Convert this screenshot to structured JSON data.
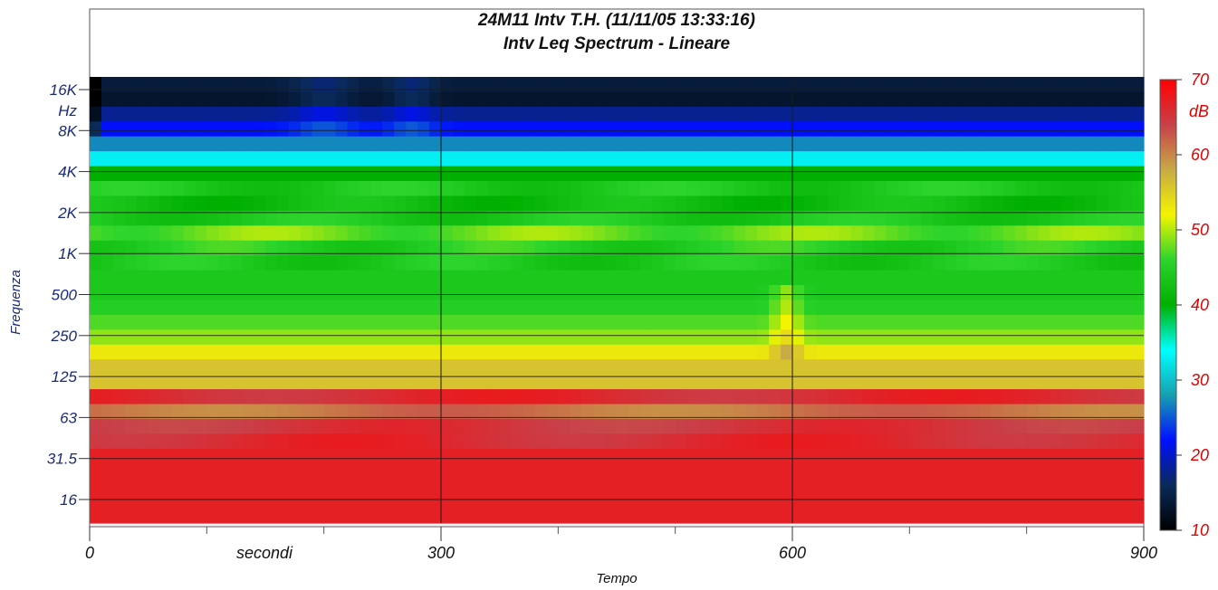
{
  "chart_data": {
    "type": "heatmap",
    "title": "24M11 Intv T.H. (11/11/05 13:33:16)",
    "subtitle": "Intv Leq Spectrum - Lineare",
    "xlabel": "Tempo",
    "x_unit_label": "secondi",
    "ylabel": "Frequenza",
    "y_unit_label": "Hz",
    "x_range": [
      0,
      900
    ],
    "x_ticks": [
      "0",
      "300",
      "600",
      "900"
    ],
    "x_minor_step": 100,
    "y_ticks": [
      "16K",
      "8K",
      "4K",
      "2K",
      "1K",
      "500",
      "250",
      "125",
      "63",
      "31.5",
      "16"
    ],
    "colorbar": {
      "unit": "dB",
      "range": [
        10,
        70
      ],
      "ticks": [
        "70",
        "60",
        "50",
        "40",
        "30",
        "20",
        "10"
      ]
    },
    "grid": true,
    "time_step_s": 10,
    "band_order": "top-to-bottom",
    "band_base_levels_db": [
      14,
      13,
      18,
      22,
      27,
      33,
      40,
      44,
      42,
      44,
      48,
      45,
      44,
      44,
      44,
      45,
      47,
      49,
      53,
      56,
      56,
      66,
      61,
      65,
      66,
      67,
      67,
      67,
      67,
      67
    ],
    "colors": {
      "stops": [
        "#000000",
        "#0a2a5a",
        "#0010ff",
        "#17a0b0",
        "#00ffff",
        "#00b000",
        "#2cd42c",
        "#f4f400",
        "#c8aa46",
        "#c8404a",
        "#ff0000"
      ]
    }
  }
}
